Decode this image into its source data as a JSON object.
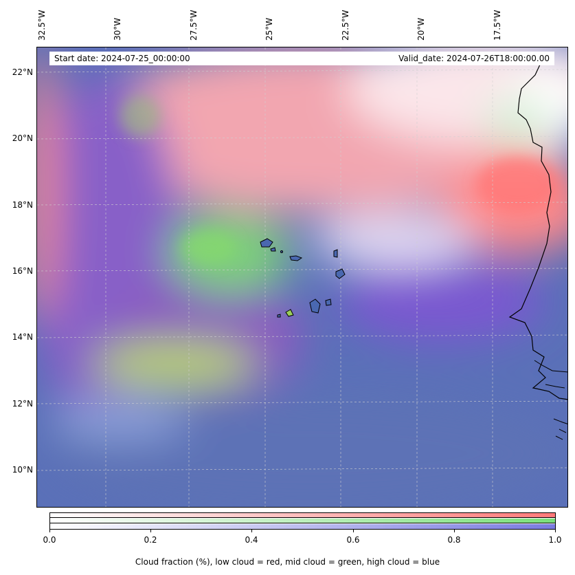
{
  "map": {
    "start_date": "Start date: 2024-07-25_00:00:00",
    "valid_date": "Valid_date: 2024-07-26T18:00:00.00",
    "lon_labels": [
      "32.5°W",
      "30°W",
      "27.5°W",
      "25°W",
      "22.5°W",
      "20°W",
      "17.5°W"
    ],
    "lat_labels": [
      "22°N",
      "20°N",
      "18°N",
      "16°N",
      "14°N",
      "12°N",
      "10°N"
    ],
    "colors": {
      "low_cloud": "#ff8080",
      "mid_cloud": "#80ff80",
      "high_cloud": "#8080ff",
      "coast": "#000000"
    }
  },
  "colorbar": {
    "ticks": [
      "0.0",
      "0.2",
      "0.4",
      "0.6",
      "0.8",
      "1.0"
    ],
    "caption": "Cloud fraction (%), low cloud = red, mid cloud = green, high cloud = blue"
  }
}
